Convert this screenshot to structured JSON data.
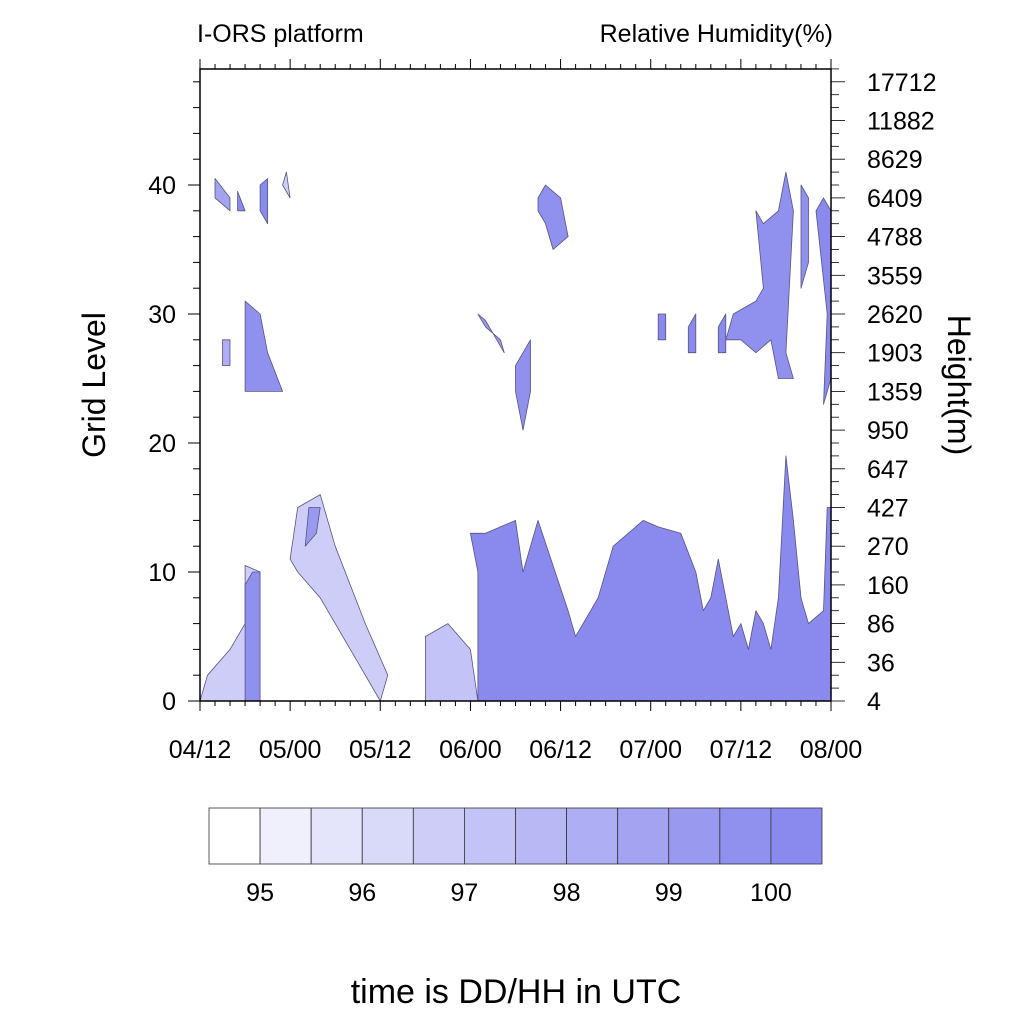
{
  "chart_data": {
    "type": "heatmap",
    "title_left": "I-ORS platform",
    "title_right": "Relative Humidity(%)",
    "xlabel": "time is DD/HH in UTC",
    "ylabel": "Grid Level",
    "ylabel_right": "Height(m)",
    "x_ticks": [
      "04/12",
      "05/00",
      "05/12",
      "06/00",
      "06/12",
      "07/00",
      "07/12",
      "08/00"
    ],
    "x_range_hours": [
      0,
      84
    ],
    "y_ticks": [
      0,
      10,
      20,
      30,
      40
    ],
    "ylim": [
      0,
      49
    ],
    "height_ticks": [
      "4",
      "36",
      "86",
      "160",
      "270",
      "427",
      "647",
      "950",
      "1359",
      "1903",
      "2620",
      "3559",
      "4788",
      "6409",
      "8629",
      "11882",
      "17712"
    ],
    "colorbar": {
      "levels": [
        94.5,
        95,
        95.5,
        96,
        96.5,
        97,
        97.5,
        98,
        98.5,
        99,
        99.5,
        100,
        100.5
      ],
      "labels": [
        "95",
        "96",
        "97",
        "98",
        "99",
        "100"
      ],
      "colors": [
        "#ffffff",
        "#f0f0fd",
        "#e4e4fb",
        "#d9d9fa",
        "#cdcdf8",
        "#c3c3f7",
        "#b8b8f5",
        "#aeaef4",
        "#a3a3f2",
        "#9999f0",
        "#9090ef",
        "#8a8aee"
      ]
    },
    "regions": [
      {
        "level": 11,
        "points": [
          [
            37,
            0
          ],
          [
            37,
            10
          ],
          [
            36,
            13
          ],
          [
            38,
            13
          ],
          [
            42,
            14
          ],
          [
            43,
            10
          ],
          [
            45,
            14
          ],
          [
            49,
            7
          ],
          [
            50,
            5
          ],
          [
            53,
            8
          ],
          [
            55,
            12
          ],
          [
            59,
            14
          ],
          [
            61,
            13.5
          ],
          [
            64,
            13
          ],
          [
            66,
            10
          ],
          [
            67,
            7
          ],
          [
            68,
            8
          ],
          [
            69,
            11
          ],
          [
            70,
            8
          ],
          [
            71,
            5
          ],
          [
            72,
            6
          ],
          [
            73,
            4
          ],
          [
            74,
            7
          ],
          [
            75,
            6
          ],
          [
            76,
            4
          ],
          [
            77,
            8
          ],
          [
            78,
            19
          ],
          [
            79,
            14
          ],
          [
            80,
            8
          ],
          [
            81,
            6
          ],
          [
            83,
            7
          ],
          [
            83.5,
            15
          ],
          [
            84,
            15
          ],
          [
            84,
            0
          ]
        ]
      },
      {
        "level": 5,
        "points": [
          [
            30,
            0
          ],
          [
            30,
            5
          ],
          [
            33,
            6
          ],
          [
            36,
            4
          ],
          [
            37,
            0
          ]
        ]
      },
      {
        "level": 4,
        "points": [
          [
            0,
            0
          ],
          [
            1,
            2
          ],
          [
            4,
            4
          ],
          [
            6,
            6
          ],
          [
            6,
            10.5
          ],
          [
            8,
            10
          ],
          [
            8,
            0
          ]
        ]
      },
      {
        "level": 10,
        "points": [
          [
            6,
            0
          ],
          [
            6,
            9
          ],
          [
            7,
            10
          ],
          [
            8,
            10
          ],
          [
            8,
            0
          ]
        ]
      },
      {
        "level": 4,
        "points": [
          [
            12,
            11
          ],
          [
            13,
            15
          ],
          [
            16,
            16
          ],
          [
            18,
            12
          ],
          [
            22,
            6
          ],
          [
            25,
            2
          ],
          [
            24,
            0
          ],
          [
            21,
            3
          ],
          [
            16,
            8
          ],
          [
            13,
            10
          ]
        ]
      },
      {
        "level": 9,
        "points": [
          [
            14,
            12
          ],
          [
            14.5,
            15
          ],
          [
            16,
            15
          ],
          [
            15.5,
            13
          ]
        ]
      },
      {
        "level": 7,
        "points": [
          [
            3,
            26
          ],
          [
            3,
            28
          ],
          [
            4,
            28
          ],
          [
            4,
            26
          ]
        ]
      },
      {
        "level": 10,
        "points": [
          [
            6,
            24
          ],
          [
            6,
            31
          ],
          [
            8,
            30
          ],
          [
            9,
            27
          ],
          [
            11,
            24
          ],
          [
            8,
            24
          ]
        ]
      },
      {
        "level": 8,
        "points": [
          [
            2,
            39
          ],
          [
            2,
            40.5
          ],
          [
            4,
            39
          ],
          [
            4,
            38
          ]
        ]
      },
      {
        "level": 11,
        "points": [
          [
            5,
            38
          ],
          [
            5,
            39.5
          ],
          [
            6,
            38
          ]
        ]
      },
      {
        "level": 11,
        "points": [
          [
            8,
            38
          ],
          [
            8,
            40
          ],
          [
            9,
            40.5
          ],
          [
            9,
            37
          ]
        ]
      },
      {
        "level": 4,
        "points": [
          [
            11,
            40
          ],
          [
            11.5,
            41
          ],
          [
            12,
            39
          ]
        ]
      },
      {
        "level": 9,
        "points": [
          [
            37,
            30
          ],
          [
            38,
            29
          ],
          [
            40,
            28
          ],
          [
            40.5,
            27
          ],
          [
            38,
            29.5
          ]
        ]
      },
      {
        "level": 10,
        "points": [
          [
            42,
            26
          ],
          [
            44,
            28
          ],
          [
            44,
            24
          ],
          [
            43,
            21
          ],
          [
            42,
            24
          ]
        ]
      },
      {
        "level": 10,
        "points": [
          [
            45,
            38
          ],
          [
            46,
            37
          ],
          [
            47,
            35
          ],
          [
            49,
            36
          ],
          [
            48,
            39
          ],
          [
            46,
            40
          ],
          [
            45,
            39
          ]
        ]
      },
      {
        "level": 11,
        "points": [
          [
            61,
            28
          ],
          [
            61,
            30
          ],
          [
            62,
            30
          ],
          [
            62,
            28
          ]
        ]
      },
      {
        "level": 11,
        "points": [
          [
            65,
            27
          ],
          [
            65,
            29
          ],
          [
            66,
            30
          ],
          [
            66,
            27
          ]
        ]
      },
      {
        "level": 11,
        "points": [
          [
            69,
            27
          ],
          [
            69,
            29
          ],
          [
            70,
            30
          ],
          [
            70,
            27
          ]
        ]
      },
      {
        "level": 10,
        "points": [
          [
            70,
            28
          ],
          [
            71,
            30
          ],
          [
            74,
            31
          ],
          [
            75,
            32
          ],
          [
            74,
            38
          ],
          [
            75,
            37
          ],
          [
            77,
            38
          ],
          [
            78,
            41
          ],
          [
            79,
            38
          ],
          [
            78,
            27
          ],
          [
            79,
            25
          ],
          [
            77,
            25
          ],
          [
            76,
            28
          ],
          [
            74,
            27
          ],
          [
            72,
            28
          ]
        ]
      },
      {
        "level": 10,
        "points": [
          [
            80,
            39
          ],
          [
            80,
            40
          ],
          [
            81,
            39
          ],
          [
            81,
            34
          ],
          [
            80,
            32
          ]
        ]
      },
      {
        "level": 11,
        "points": [
          [
            82,
            38
          ],
          [
            83,
            39
          ],
          [
            84,
            38
          ],
          [
            84,
            25
          ],
          [
            83,
            23
          ],
          [
            83.5,
            30
          ]
        ]
      }
    ]
  }
}
